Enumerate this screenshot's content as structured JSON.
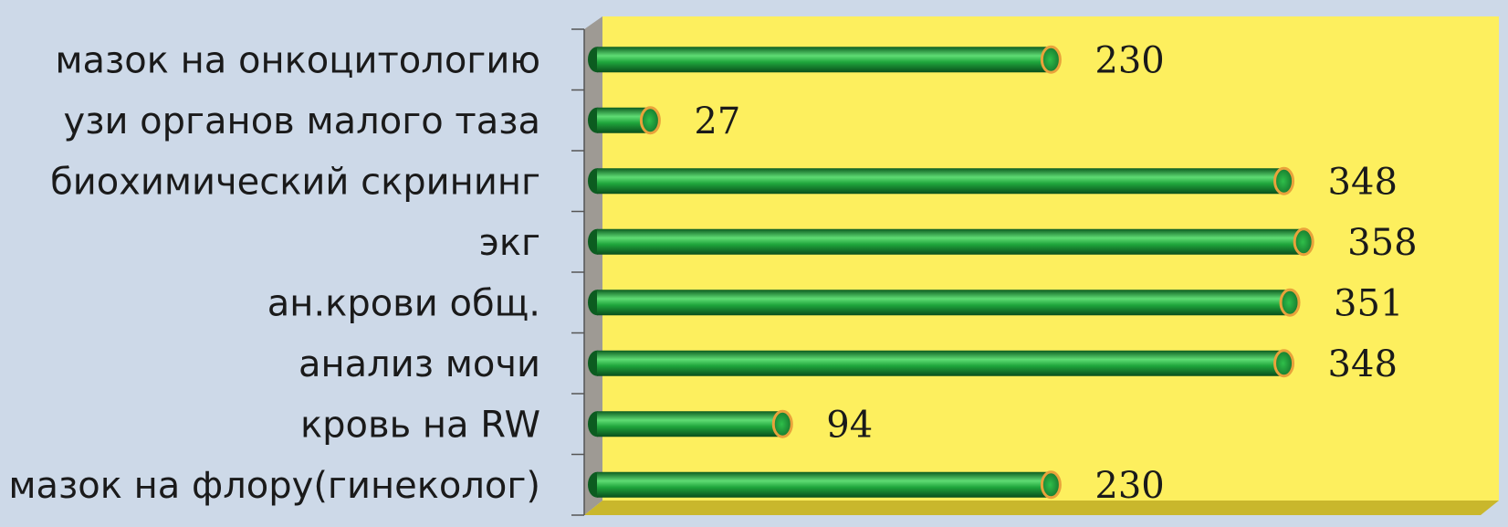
{
  "chart_data": {
    "type": "bar",
    "orientation": "horizontal",
    "categories": [
      "мазок  на онкоцитологию",
      "узи органов малого таза",
      "биохимический  скрининг",
      "экг",
      "ан.крови общ.",
      "анализ мочи",
      "кровь на RW",
      "мазок на флору(гинеколог)"
    ],
    "values": [
      230,
      27,
      348,
      358,
      351,
      348,
      94,
      230
    ],
    "data_labels": [
      "230",
      "27",
      "348",
      "358",
      "351",
      "348",
      "94",
      "230"
    ],
    "xlim": [
      0,
      400
    ],
    "grid": false,
    "legend": "none",
    "colors": {
      "bar": "#1fa53c",
      "bar_highlight": "#5fdc74",
      "bar_shadow": "#0c5c20",
      "bar_end": "#e9a23b",
      "plot_background": "#fdef5e",
      "floor": "#c9b72c",
      "side_wall": "#9e9a94",
      "page_background": "#cdd9e8"
    }
  }
}
